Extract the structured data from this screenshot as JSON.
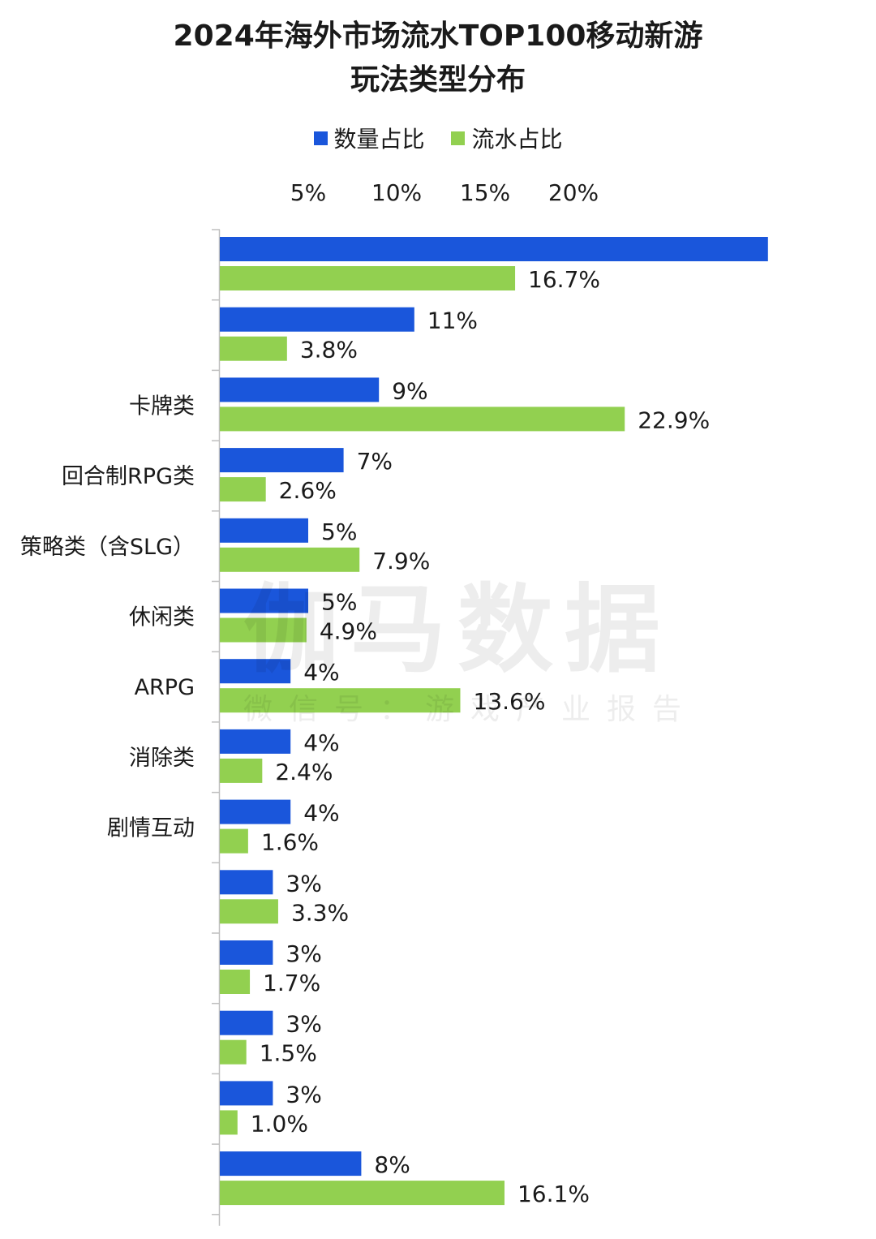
{
  "title_line1": "2024年海外市场流水TOP100移动新游",
  "title_line2": "玩法类型分布",
  "legend": [
    {
      "label": "数量占比",
      "color": "#1a56db"
    },
    {
      "label": "流水占比",
      "color": "#92d050"
    }
  ],
  "watermark": {
    "main": "伽马数据",
    "sub": "微信号：游戏产业报告"
  },
  "chart_data": {
    "type": "bar",
    "orientation": "horizontal",
    "categories": [
      "",
      "",
      "卡牌类",
      "回合制RPG类",
      "策略类（含SLG）",
      "休闲类",
      "ARPG",
      "消除类",
      "剧情互动",
      "",
      "",
      "",
      "",
      ""
    ],
    "series": [
      {
        "name": "数量占比",
        "color": "#1a56db",
        "values": [
          31,
          11,
          9,
          7,
          5,
          5,
          4,
          4,
          4,
          3,
          3,
          3,
          3,
          8
        ],
        "labels": [
          "",
          "11%",
          "9%",
          "7%",
          "5%",
          "5%",
          "4%",
          "4%",
          "4%",
          "3%",
          "3%",
          "3%",
          "3%",
          "8%"
        ]
      },
      {
        "name": "流水占比",
        "color": "#92d050",
        "values": [
          16.7,
          3.8,
          22.9,
          2.6,
          7.9,
          4.9,
          13.6,
          2.4,
          1.6,
          3.3,
          1.7,
          1.5,
          1.0,
          16.1
        ],
        "labels": [
          "16.7%",
          "3.8%",
          "22.9%",
          "2.6%",
          "7.9%",
          "4.9%",
          "13.6%",
          "2.4%",
          "1.6%",
          "3.3%",
          "1.7%",
          "1.5%",
          "1.0%",
          "16.1%"
        ]
      }
    ],
    "xticks": [
      5,
      10,
      15,
      20
    ],
    "xtick_labels": [
      "5%",
      "10%",
      "15%",
      "20%"
    ],
    "xlim": [
      0,
      31
    ]
  }
}
